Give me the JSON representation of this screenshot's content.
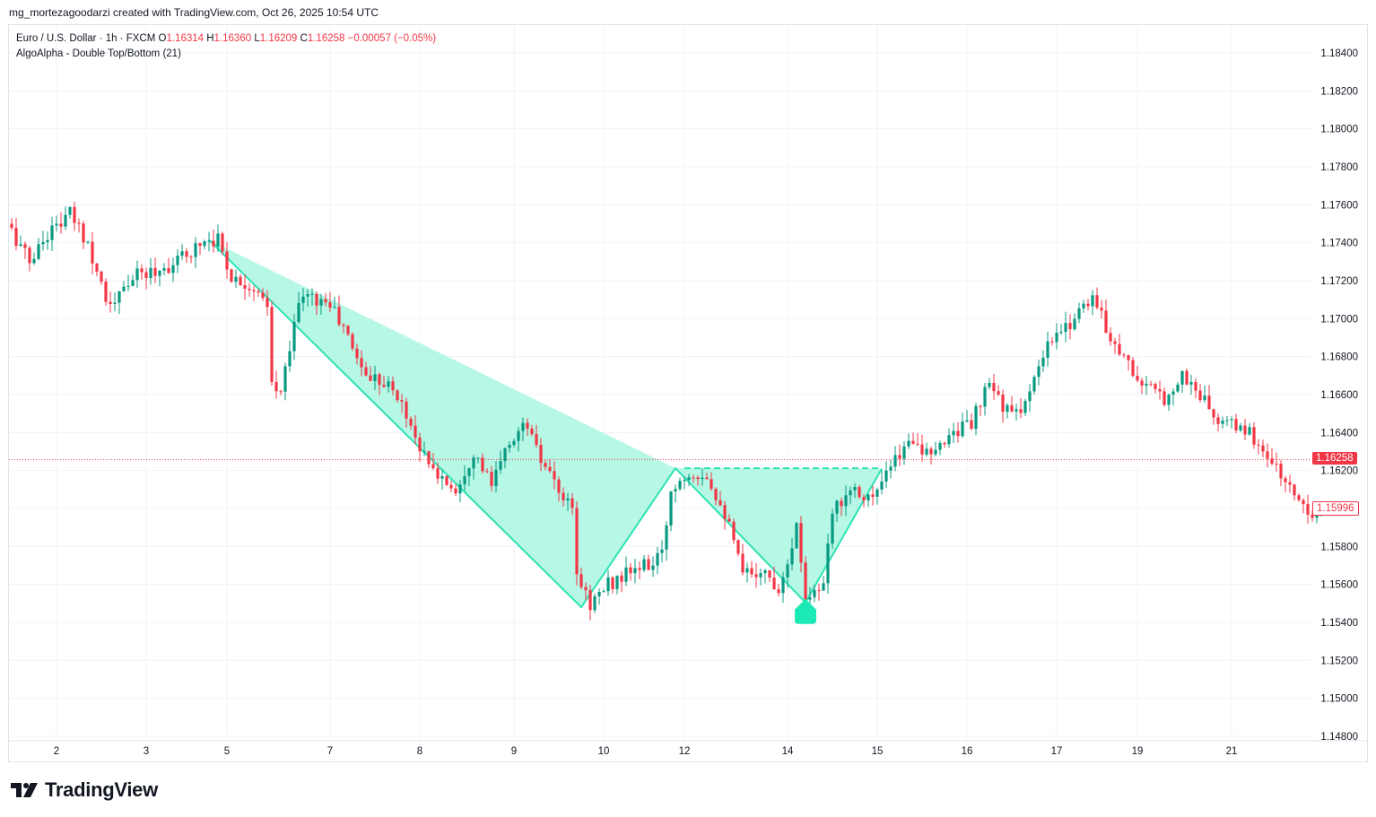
{
  "header": {
    "caption": "mg_mortezagoodarzi created with TradingView.com, Oct 26, 2025 10:54 UTC"
  },
  "legend": {
    "symbol": "Euro / U.S. Dollar · 1h · FXCM",
    "o_label": "O",
    "o_value": "1.16314",
    "h_label": "H",
    "h_value": "1.16360",
    "l_label": "L",
    "l_value": "1.16209",
    "c_label": "C",
    "c_value": "1.16258",
    "change": "−0.00057 (−0.05%)",
    "indicator": "AlgoAlpha - Double Top/Bottom (21)"
  },
  "price_tags": {
    "last": "1.16258",
    "mark": "1.15996"
  },
  "brand": {
    "name": "TradingView",
    "icon": "tradingview-logo-icon"
  },
  "colors": {
    "up": "#089981",
    "down": "#f23645",
    "pattern_line": "#2de3b4",
    "pattern_fill": "#b2f7e4",
    "marker": "#1de9b6",
    "last_price_line": "#f23645",
    "grid": "#f0f3fa"
  },
  "chart_data": {
    "type": "candlestick",
    "symbol": "EURUSD",
    "timeframe": "1h",
    "ylim": [
      1.148,
      1.185
    ],
    "y_ticks": [
      "1.18400",
      "1.18200",
      "1.18000",
      "1.17800",
      "1.17600",
      "1.17400",
      "1.17200",
      "1.17000",
      "1.16800",
      "1.16600",
      "1.16400",
      "1.16200",
      "1.16000",
      "1.15800",
      "1.15600",
      "1.15400",
      "1.15200",
      "1.15000",
      "1.14800"
    ],
    "x_ticks": [
      {
        "label": "2",
        "index": 10
      },
      {
        "label": "3",
        "index": 30
      },
      {
        "label": "5",
        "index": 48
      },
      {
        "label": "7",
        "index": 71
      },
      {
        "label": "8",
        "index": 91
      },
      {
        "label": "9",
        "index": 112
      },
      {
        "label": "10",
        "index": 132
      },
      {
        "label": "12",
        "index": 150
      },
      {
        "label": "14",
        "index": 173
      },
      {
        "label": "15",
        "index": 193
      },
      {
        "label": "16",
        "index": 213
      },
      {
        "label": "17",
        "index": 233
      },
      {
        "label": "19",
        "index": 251
      },
      {
        "label": "21",
        "index": 272
      }
    ],
    "last_price": 1.16258,
    "second_marker_price": 1.15996,
    "anchors": [
      {
        "i": 0,
        "p": 1.175
      },
      {
        "i": 5,
        "p": 1.173
      },
      {
        "i": 9,
        "p": 1.1745
      },
      {
        "i": 14,
        "p": 1.1755
      },
      {
        "i": 18,
        "p": 1.174
      },
      {
        "i": 23,
        "p": 1.1705
      },
      {
        "i": 28,
        "p": 1.1722
      },
      {
        "i": 33,
        "p": 1.1725
      },
      {
        "i": 38,
        "p": 1.173
      },
      {
        "i": 44,
        "p": 1.1742
      },
      {
        "i": 47,
        "p": 1.1742
      },
      {
        "i": 50,
        "p": 1.1722
      },
      {
        "i": 54,
        "p": 1.1718
      },
      {
        "i": 58,
        "p": 1.1705
      },
      {
        "i": 59,
        "p": 1.1665
      },
      {
        "i": 61,
        "p": 1.166
      },
      {
        "i": 64,
        "p": 1.17
      },
      {
        "i": 66,
        "p": 1.1712
      },
      {
        "i": 72,
        "p": 1.1708
      },
      {
        "i": 76,
        "p": 1.169
      },
      {
        "i": 80,
        "p": 1.167
      },
      {
        "i": 84,
        "p": 1.1668
      },
      {
        "i": 88,
        "p": 1.1655
      },
      {
        "i": 94,
        "p": 1.1622
      },
      {
        "i": 100,
        "p": 1.161
      },
      {
        "i": 104,
        "p": 1.163
      },
      {
        "i": 108,
        "p": 1.1612
      },
      {
        "i": 112,
        "p": 1.1635
      },
      {
        "i": 116,
        "p": 1.1645
      },
      {
        "i": 118,
        "p": 1.163
      },
      {
        "i": 122,
        "p": 1.1612
      },
      {
        "i": 126,
        "p": 1.1598
      },
      {
        "i": 127,
        "p": 1.1565
      },
      {
        "i": 130,
        "p": 1.155
      },
      {
        "i": 134,
        "p": 1.156
      },
      {
        "i": 140,
        "p": 1.1568
      },
      {
        "i": 143,
        "p": 1.157
      },
      {
        "i": 146,
        "p": 1.1575
      },
      {
        "i": 148,
        "p": 1.161
      },
      {
        "i": 152,
        "p": 1.162
      },
      {
        "i": 156,
        "p": 1.1618
      },
      {
        "i": 160,
        "p": 1.1598
      },
      {
        "i": 164,
        "p": 1.1565
      },
      {
        "i": 168,
        "p": 1.1568
      },
      {
        "i": 172,
        "p": 1.1558
      },
      {
        "i": 176,
        "p": 1.159
      },
      {
        "i": 178,
        "p": 1.1555
      },
      {
        "i": 182,
        "p": 1.1558
      },
      {
        "i": 184,
        "p": 1.1598
      },
      {
        "i": 188,
        "p": 1.1612
      },
      {
        "i": 193,
        "p": 1.1605
      },
      {
        "i": 198,
        "p": 1.1625
      },
      {
        "i": 202,
        "p": 1.1638
      },
      {
        "i": 206,
        "p": 1.1625
      },
      {
        "i": 210,
        "p": 1.164
      },
      {
        "i": 215,
        "p": 1.1645
      },
      {
        "i": 219,
        "p": 1.1665
      },
      {
        "i": 224,
        "p": 1.1648
      },
      {
        "i": 228,
        "p": 1.166
      },
      {
        "i": 232,
        "p": 1.1685
      },
      {
        "i": 236,
        "p": 1.1695
      },
      {
        "i": 240,
        "p": 1.1708
      },
      {
        "i": 242,
        "p": 1.1712
      },
      {
        "i": 245,
        "p": 1.1695
      },
      {
        "i": 249,
        "p": 1.168
      },
      {
        "i": 253,
        "p": 1.1665
      },
      {
        "i": 258,
        "p": 1.1658
      },
      {
        "i": 262,
        "p": 1.167
      },
      {
        "i": 266,
        "p": 1.166
      },
      {
        "i": 270,
        "p": 1.1645
      },
      {
        "i": 276,
        "p": 1.1642
      },
      {
        "i": 281,
        "p": 1.1628
      },
      {
        "i": 286,
        "p": 1.161
      },
      {
        "i": 290,
        "p": 1.16
      },
      {
        "i": 292,
        "p": 1.1598
      }
    ],
    "pattern": {
      "name": "double bottom",
      "polyline": [
        {
          "i": 44,
          "p": 1.17415
        },
        {
          "i": 127,
          "p": 1.1548
        },
        {
          "i": 148,
          "p": 1.16212
        },
        {
          "i": 177,
          "p": 1.15505
        },
        {
          "i": 194,
          "p": 1.1621
        }
      ],
      "top_edge": [
        {
          "i": 44,
          "p": 1.17415
        },
        {
          "i": 148,
          "p": 1.16212
        }
      ],
      "neckline_price": 1.16212,
      "neckline_range": [
        150,
        194
      ],
      "signal_marker": {
        "i": 177,
        "p": 1.1542,
        "direction": "up"
      }
    }
  }
}
